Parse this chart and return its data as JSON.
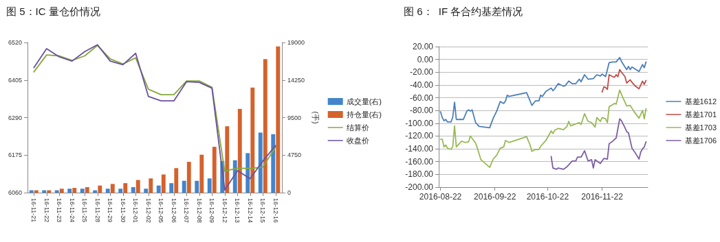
{
  "chart_data": [
    {
      "type": "bar",
      "title": "图 5：IC 量仓价情况",
      "categories": [
        "16-11-21",
        "16-11-22",
        "16-11-23",
        "16-11-24",
        "16-11-25",
        "16-11-28",
        "16-11-29",
        "16-11-30",
        "16-12-01",
        "16-12-02",
        "16-12-05",
        "16-12-06",
        "16-12-07",
        "16-12-08",
        "16-12-09",
        "16-12-12",
        "16-12-13",
        "16-12-14",
        "16-12-15",
        "16-12-16"
      ],
      "series": [
        {
          "name": "成交量(右)",
          "type": "bar",
          "axis": "y2",
          "color": "#4285cc",
          "values": [
            300,
            300,
            300,
            500,
            500,
            300,
            500,
            500,
            700,
            500,
            900,
            1200,
            1500,
            1500,
            1800,
            4000,
            4100,
            5000,
            7600,
            7400
          ]
        },
        {
          "name": "持仓量(右)",
          "type": "bar",
          "axis": "y2",
          "color": "#d4622c",
          "values": [
            300,
            300,
            500,
            600,
            700,
            900,
            1100,
            1200,
            1600,
            1800,
            2300,
            3100,
            3900,
            4800,
            5800,
            8400,
            10600,
            13300,
            16900,
            18500
          ]
        },
        {
          "name": "结算价",
          "type": "line",
          "color": "#86a93c",
          "values": [
            6430,
            6482,
            6479,
            6465,
            6479,
            6511,
            6470,
            6454,
            6473,
            6377,
            6360,
            6360,
            6402,
            6402,
            6383,
            6126,
            6135,
            6134,
            6138,
            6200
          ]
        },
        {
          "name": "收盘价",
          "type": "line",
          "color": "#6b4f9e",
          "values": [
            6443,
            6501,
            6476,
            6463,
            6492,
            6513,
            6463,
            6452,
            6487,
            6355,
            6341,
            6341,
            6400,
            6398,
            6380,
            6068,
            6127,
            6103,
            6157,
            6204
          ]
        }
      ],
      "ylim": [
        6060,
        6520
      ],
      "yticks": [
        6060,
        6175,
        6290,
        6405,
        6520
      ],
      "y2lim": [
        0,
        19000
      ],
      "y2ticks": [
        0,
        4750,
        9500,
        14250,
        19000
      ],
      "y2label": "(手)",
      "legend": "right",
      "marker": "none"
    },
    {
      "type": "line",
      "title": "图 6：  IF 各合约基差情况",
      "series": [
        {
          "name": "基差1612",
          "color": "#4a7ebb",
          "x": [
            "2016-08-22",
            "2016-08-23",
            "2016-08-24",
            "2016-08-25",
            "2016-08-26",
            "2016-08-28",
            "2016-08-29",
            "2016-08-30",
            "2016-08-31",
            "2016-09-04",
            "2016-09-06",
            "2016-09-07",
            "2016-09-08",
            "2016-09-09",
            "2016-09-11",
            "2016-09-13",
            "2016-09-19",
            "2016-09-21",
            "2016-09-23",
            "2016-09-25",
            "2016-09-27",
            "2016-09-28",
            "2016-09-29",
            "2016-09-30",
            "2016-10-10",
            "2016-10-12",
            "2016-10-13",
            "2016-10-15",
            "2016-10-17",
            "2016-10-18",
            "2016-10-19",
            "2016-10-21",
            "2016-10-24",
            "2016-10-25",
            "2016-10-26",
            "2016-10-28",
            "2016-10-31",
            "2016-11-01",
            "2016-11-03",
            "2016-11-05",
            "2016-11-07",
            "2016-11-09",
            "2016-11-10",
            "2016-11-12",
            "2016-11-14",
            "2016-11-17",
            "2016-11-19",
            "2016-11-21",
            "2016-11-22",
            "2016-11-24",
            "2016-11-26",
            "2016-11-28",
            "2016-11-30",
            "2016-12-02",
            "2016-12-03",
            "2016-12-05",
            "2016-12-06",
            "2016-12-07",
            "2016-12-08",
            "2016-12-09",
            "2016-12-13",
            "2016-12-15",
            "2016-12-16",
            "2016-12-17"
          ],
          "values": [
            -82,
            -91,
            -96,
            -94,
            -98,
            -98,
            -90,
            -67,
            -94,
            -94,
            -81,
            -79,
            -81,
            -79,
            -99,
            -105,
            -107,
            -92,
            -81,
            -66,
            -69,
            -65,
            -56,
            -58,
            -52,
            -65,
            -72,
            -65,
            -65,
            -56,
            -58,
            -50,
            -45,
            -49,
            -46,
            -38,
            -42,
            -41,
            -34,
            -38,
            -38,
            -31,
            -35,
            -24,
            -31,
            -30,
            -24,
            -26,
            -23,
            -27,
            -5,
            -4,
            -4,
            3,
            -3,
            -12,
            -16,
            -11,
            -16,
            -12,
            -19,
            -8,
            -13,
            -4
          ]
        },
        {
          "name": "基差1701",
          "color": "#be4b48",
          "x": [
            "2016-11-22",
            "2016-11-23",
            "2016-11-24",
            "2016-11-25",
            "2016-11-26",
            "2016-11-28",
            "2016-11-29",
            "2016-11-30",
            "2016-12-01",
            "2016-12-02",
            "2016-12-03",
            "2016-12-05",
            "2016-12-06",
            "2016-12-08",
            "2016-12-09",
            "2016-12-11",
            "2016-12-13",
            "2016-12-15",
            "2016-12-16",
            "2016-12-17"
          ],
          "values": [
            -51,
            -43,
            -44,
            -47,
            -24,
            -27,
            -28,
            -24,
            -27,
            -16,
            -20,
            -27,
            -37,
            -32,
            -36,
            -42,
            -46,
            -34,
            -39,
            -33
          ]
        },
        {
          "name": "基差1703",
          "color": "#98b954",
          "x": [
            "2016-08-22",
            "2016-08-23",
            "2016-08-24",
            "2016-08-25",
            "2016-08-26",
            "2016-08-28",
            "2016-08-29",
            "2016-08-30",
            "2016-08-31",
            "2016-09-03",
            "2016-09-05",
            "2016-09-07",
            "2016-09-08",
            "2016-09-11",
            "2016-09-12",
            "2016-09-14",
            "2016-09-19",
            "2016-09-21",
            "2016-09-23",
            "2016-09-25",
            "2016-09-27",
            "2016-09-28",
            "2016-09-30",
            "2016-10-10",
            "2016-10-12",
            "2016-10-13",
            "2016-10-15",
            "2016-10-17",
            "2016-10-18",
            "2016-10-21",
            "2016-10-24",
            "2016-10-25",
            "2016-10-26",
            "2016-10-28",
            "2016-10-31",
            "2016-11-02",
            "2016-11-03",
            "2016-11-04",
            "2016-11-09",
            "2016-11-10",
            "2016-11-12",
            "2016-11-14",
            "2016-11-16",
            "2016-11-18",
            "2016-11-19",
            "2016-11-21",
            "2016-11-22",
            "2016-11-24",
            "2016-11-25",
            "2016-11-26",
            "2016-11-28",
            "2016-11-29",
            "2016-11-30",
            "2016-12-02",
            "2016-12-04",
            "2016-12-06",
            "2016-12-08",
            "2016-12-10",
            "2016-12-13",
            "2016-12-15",
            "2016-12-16",
            "2016-12-17"
          ],
          "values": [
            -125,
            -125,
            -137,
            -134,
            -139,
            -141,
            -136,
            -104,
            -137,
            -128,
            -130,
            -129,
            -120,
            -131,
            -139,
            -157,
            -169,
            -156,
            -150,
            -139,
            -137,
            -127,
            -130,
            -121,
            -134,
            -144,
            -141,
            -141,
            -136,
            -127,
            -112,
            -116,
            -111,
            -108,
            -110,
            -105,
            -97,
            -104,
            -99,
            -102,
            -85,
            -97,
            -99,
            -106,
            -91,
            -97,
            -91,
            -93,
            -99,
            -74,
            -71,
            -69,
            -70,
            -48,
            -61,
            -73,
            -72,
            -81,
            -92,
            -80,
            -93,
            -77
          ]
        },
        {
          "name": "基差1706",
          "color": "#7d5fa0",
          "x": [
            "2016-10-24",
            "2016-10-25",
            "2016-10-27",
            "2016-10-28",
            "2016-10-31",
            "2016-11-02",
            "2016-11-03",
            "2016-11-05",
            "2016-11-07",
            "2016-11-08",
            "2016-11-10",
            "2016-11-12",
            "2016-11-14",
            "2016-11-16",
            "2016-11-17",
            "2016-11-18",
            "2016-11-21",
            "2016-11-23",
            "2016-11-25",
            "2016-11-26",
            "2016-11-28",
            "2016-11-30",
            "2016-12-02",
            "2016-12-03",
            "2016-12-05",
            "2016-12-06",
            "2016-12-07",
            "2016-12-09",
            "2016-12-11",
            "2016-12-13",
            "2016-12-14",
            "2016-12-15",
            "2016-12-16",
            "2016-12-17"
          ],
          "values": [
            -152,
            -170,
            -172,
            -170,
            -172,
            -168,
            -165,
            -159,
            -159,
            -153,
            -153,
            -143,
            -159,
            -157,
            -170,
            -157,
            -163,
            -155,
            -156,
            -132,
            -128,
            -123,
            -93,
            -96,
            -107,
            -113,
            -115,
            -139,
            -147,
            -156,
            -145,
            -140,
            -137,
            -129
          ]
        }
      ],
      "xlim": [
        "2016-08-21",
        "2016-12-18"
      ],
      "xticks": [
        "2016-08-22",
        "2016-09-22",
        "2016-10-22",
        "2016-11-22"
      ],
      "ylim": [
        -200,
        20
      ],
      "yticks": [
        {
          "value": -200,
          "label": "-200.00"
        },
        {
          "value": -180,
          "label": "-180.00"
        },
        {
          "value": -160,
          "label": "-160.00"
        },
        {
          "value": -140,
          "label": "-140.00"
        },
        {
          "value": -120,
          "label": "-120.00"
        },
        {
          "value": -100,
          "label": "-100.00"
        },
        {
          "value": -80,
          "label": "-80.00"
        },
        {
          "value": -60,
          "label": "-60.00"
        },
        {
          "value": -40,
          "label": "-40.00"
        },
        {
          "value": -20,
          "label": "-20.00"
        },
        {
          "value": 0,
          "label": "0.00"
        },
        {
          "value": 20,
          "label": "20.00"
        }
      ],
      "grid": "y",
      "legend": "right",
      "marker": "none"
    }
  ]
}
